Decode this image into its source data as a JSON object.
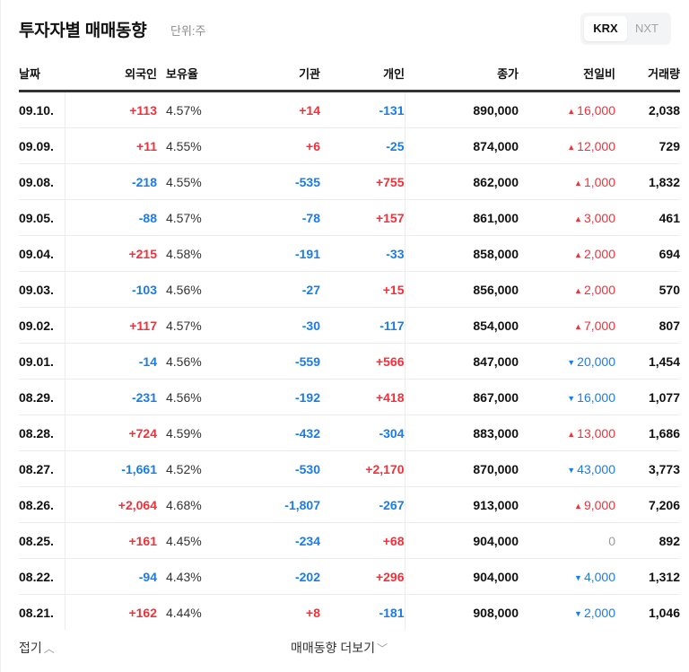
{
  "header": {
    "title": "투자자별 매매동향",
    "unit": "단위:주",
    "market_toggle": [
      {
        "label": "KRX",
        "selected": true
      },
      {
        "label": "NXT",
        "selected": false
      }
    ]
  },
  "table": {
    "columns": [
      "날짜",
      "외국인",
      "보유율",
      "기관",
      "개인",
      "종가",
      "전일비",
      "거래량"
    ],
    "rows": [
      {
        "date": "09.10.",
        "foreign": "+113",
        "rate": "4.57%",
        "inst": "+14",
        "indiv": "-131",
        "close": "890,000",
        "change": "16,000",
        "dir": "up",
        "volume": "2,038"
      },
      {
        "date": "09.09.",
        "foreign": "+11",
        "rate": "4.55%",
        "inst": "+6",
        "indiv": "-25",
        "close": "874,000",
        "change": "12,000",
        "dir": "up",
        "volume": "729"
      },
      {
        "date": "09.08.",
        "foreign": "-218",
        "rate": "4.55%",
        "inst": "-535",
        "indiv": "+755",
        "close": "862,000",
        "change": "1,000",
        "dir": "up",
        "volume": "1,832"
      },
      {
        "date": "09.05.",
        "foreign": "-88",
        "rate": "4.57%",
        "inst": "-78",
        "indiv": "+157",
        "close": "861,000",
        "change": "3,000",
        "dir": "up",
        "volume": "461"
      },
      {
        "date": "09.04.",
        "foreign": "+215",
        "rate": "4.58%",
        "inst": "-191",
        "indiv": "-33",
        "close": "858,000",
        "change": "2,000",
        "dir": "up",
        "volume": "694"
      },
      {
        "date": "09.03.",
        "foreign": "-103",
        "rate": "4.56%",
        "inst": "-27",
        "indiv": "+15",
        "close": "856,000",
        "change": "2,000",
        "dir": "up",
        "volume": "570"
      },
      {
        "date": "09.02.",
        "foreign": "+117",
        "rate": "4.57%",
        "inst": "-30",
        "indiv": "-117",
        "close": "854,000",
        "change": "7,000",
        "dir": "up",
        "volume": "807"
      },
      {
        "date": "09.01.",
        "foreign": "-14",
        "rate": "4.56%",
        "inst": "-559",
        "indiv": "+566",
        "close": "847,000",
        "change": "20,000",
        "dir": "down",
        "volume": "1,454"
      },
      {
        "date": "08.29.",
        "foreign": "-231",
        "rate": "4.56%",
        "inst": "-192",
        "indiv": "+418",
        "close": "867,000",
        "change": "16,000",
        "dir": "down",
        "volume": "1,077"
      },
      {
        "date": "08.28.",
        "foreign": "+724",
        "rate": "4.59%",
        "inst": "-432",
        "indiv": "-304",
        "close": "883,000",
        "change": "13,000",
        "dir": "up",
        "volume": "1,686"
      },
      {
        "date": "08.27.",
        "foreign": "-1,661",
        "rate": "4.52%",
        "inst": "-530",
        "indiv": "+2,170",
        "close": "870,000",
        "change": "43,000",
        "dir": "down",
        "volume": "3,773"
      },
      {
        "date": "08.26.",
        "foreign": "+2,064",
        "rate": "4.68%",
        "inst": "-1,807",
        "indiv": "-267",
        "close": "913,000",
        "change": "9,000",
        "dir": "up",
        "volume": "7,206"
      },
      {
        "date": "08.25.",
        "foreign": "+161",
        "rate": "4.45%",
        "inst": "-234",
        "indiv": "+68",
        "close": "904,000",
        "change": "0",
        "dir": "zero",
        "volume": "892"
      },
      {
        "date": "08.22.",
        "foreign": "-94",
        "rate": "4.43%",
        "inst": "-202",
        "indiv": "+296",
        "close": "904,000",
        "change": "4,000",
        "dir": "down",
        "volume": "1,312"
      },
      {
        "date": "08.21.",
        "foreign": "+162",
        "rate": "4.44%",
        "inst": "+8",
        "indiv": "-181",
        "close": "908,000",
        "change": "2,000",
        "dir": "down",
        "volume": "1,046"
      }
    ]
  },
  "footer": {
    "fold_label": "접기",
    "more_label": "매매동향 더보기"
  },
  "icons": {
    "up": "▲",
    "down": "▼",
    "chevron_up": "︿",
    "chevron_down": "﹀"
  },
  "colors": {
    "up": "#f0313a",
    "down": "#1a7ce6",
    "zero": "#9a9a9a"
  }
}
